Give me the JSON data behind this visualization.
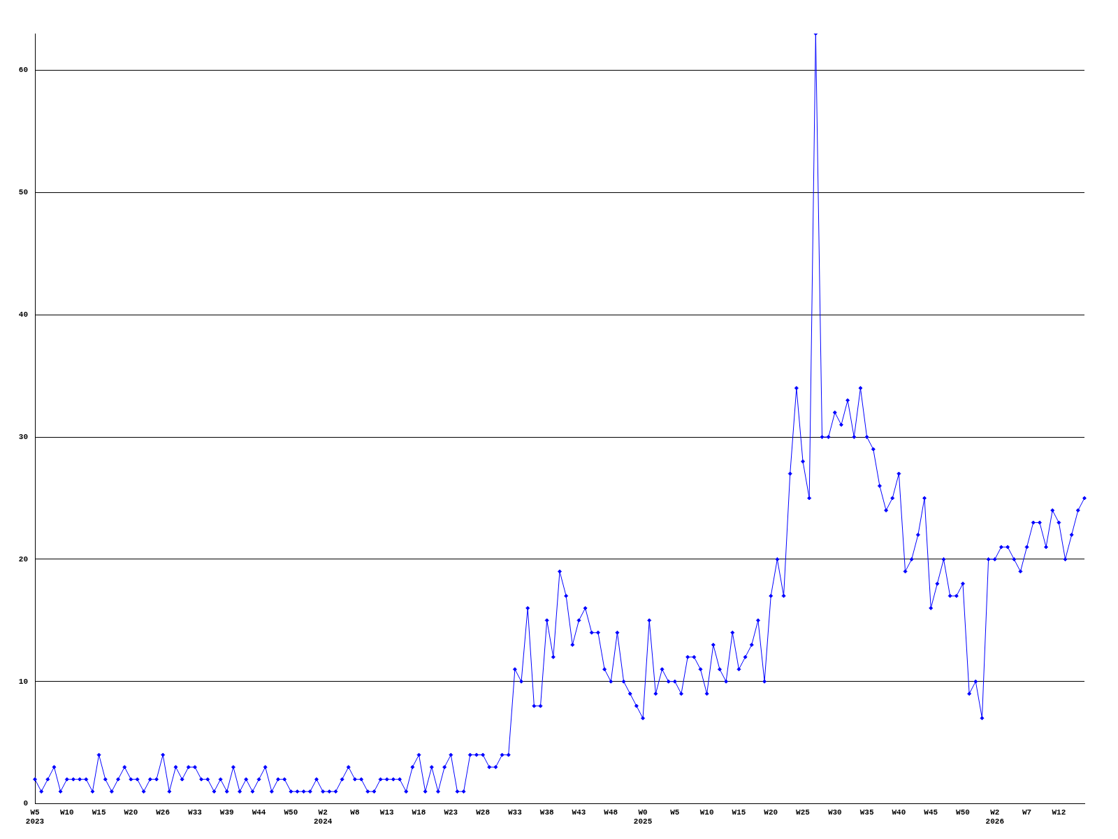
{
  "chart_data": {
    "type": "line",
    "categories": [
      "W5\n2023",
      null,
      null,
      null,
      null,
      "W10",
      null,
      null,
      null,
      null,
      "W15",
      null,
      null,
      null,
      null,
      "W20",
      null,
      null,
      null,
      null,
      "W26",
      null,
      null,
      null,
      null,
      "W33",
      null,
      null,
      null,
      null,
      "W39",
      null,
      null,
      null,
      null,
      "W44",
      null,
      null,
      null,
      null,
      "W50",
      null,
      null,
      null,
      null,
      "W2\n2024",
      null,
      null,
      null,
      null,
      "W8",
      null,
      null,
      null,
      null,
      "W13",
      null,
      null,
      null,
      null,
      "W18",
      null,
      null,
      null,
      null,
      "W23",
      null,
      null,
      null,
      null,
      "W28",
      null,
      null,
      null,
      null,
      "W33",
      null,
      null,
      null,
      null,
      "W38",
      null,
      null,
      null,
      null,
      "W43",
      null,
      null,
      null,
      null,
      "W48",
      null,
      null,
      null,
      null,
      "W0\n2025",
      null,
      null,
      null,
      null,
      "W5",
      null,
      null,
      null,
      null,
      "W10",
      null,
      null,
      null,
      null,
      "W15",
      null,
      null,
      null,
      null,
      "W20",
      null,
      null,
      null,
      null,
      "W25",
      null,
      null,
      null,
      null,
      "W30",
      null,
      null,
      null,
      null,
      "W35",
      null,
      null,
      null,
      null,
      "W40",
      null,
      null,
      null,
      null,
      "W45",
      null,
      null,
      null,
      null,
      "W50",
      null,
      null,
      null,
      null,
      "W2\n2026",
      null,
      null,
      null,
      null,
      "W7",
      null,
      null,
      null,
      null,
      "W12",
      null,
      null,
      null,
      null
    ],
    "series": [
      {
        "color": "#0000ff",
        "values": [
          2,
          1,
          2,
          3,
          1,
          2,
          2,
          2,
          2,
          1,
          4,
          2,
          1,
          2,
          3,
          2,
          2,
          1,
          2,
          2,
          4,
          1,
          3,
          2,
          3,
          3,
          2,
          2,
          1,
          2,
          1,
          3,
          1,
          2,
          1,
          2,
          3,
          1,
          2,
          2,
          1,
          1,
          1,
          1,
          2,
          1,
          1,
          1,
          2,
          3,
          2,
          2,
          1,
          1,
          2,
          2,
          2,
          2,
          1,
          3,
          4,
          1,
          3,
          1,
          3,
          4,
          1,
          1,
          4,
          4,
          4,
          3,
          3,
          4,
          4,
          11,
          10,
          16,
          8,
          8,
          15,
          12,
          19,
          17,
          13,
          15,
          16,
          14,
          14,
          11,
          10,
          14,
          10,
          9,
          8,
          7,
          15,
          9,
          11,
          10,
          10,
          9,
          12,
          12,
          11,
          9,
          13,
          11,
          10,
          14,
          11,
          12,
          13,
          15,
          10,
          17,
          20,
          17,
          27,
          34,
          28,
          25,
          63,
          30,
          30,
          32,
          31,
          33,
          30,
          34,
          30,
          29,
          26,
          24,
          25,
          27,
          19,
          20,
          22,
          25,
          16,
          18,
          20,
          17,
          17,
          18,
          9,
          10,
          7,
          20,
          20,
          21,
          21,
          20,
          19,
          21,
          23,
          23,
          21,
          24,
          23,
          20,
          22,
          24,
          25
        ]
      }
    ],
    "ylim": [
      0,
      63
    ],
    "yticks": [
      0,
      10,
      20,
      30,
      40,
      50,
      60
    ],
    "grid": "y",
    "legend": false,
    "marker": "diamond",
    "line_style": "solid"
  }
}
